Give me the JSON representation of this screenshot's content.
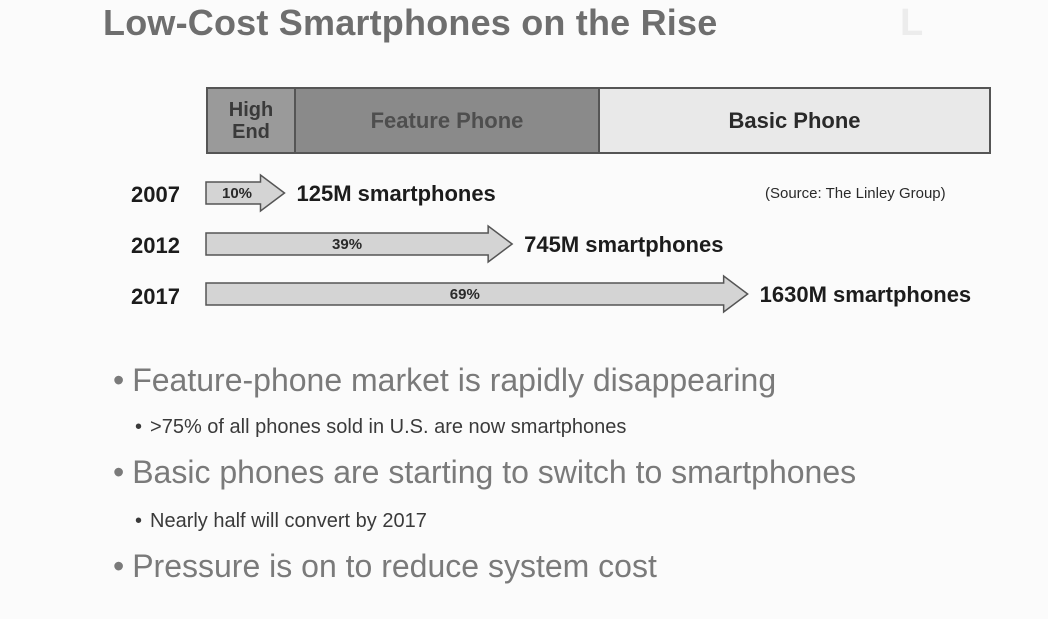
{
  "slide": {
    "title": "Low-Cost Smartphones on the Rise",
    "source": "(Source: The Linley Group)",
    "bullets": [
      {
        "level": 1,
        "text": "Feature-phone market is rapidly disappearing"
      },
      {
        "level": 2,
        "text": ">75% of all phones sold in U.S. are now smartphones"
      },
      {
        "level": 1,
        "text": "Basic phones are starting to switch to smartphones"
      },
      {
        "level": 2,
        "text": "Nearly half will convert by 2017"
      },
      {
        "level": 1,
        "text": "Pressure is on to reduce system cost"
      }
    ],
    "colors": {
      "high_end": "#9a9a9a",
      "feature": "#8a8a8a",
      "basic": "#e9e9e9",
      "arrow_fill": "#d4d4d4",
      "arrow_stroke": "#555555"
    }
  },
  "chart_data": {
    "type": "bar",
    "segments": [
      {
        "label": "High End"
      },
      {
        "label": "Feature Phone"
      },
      {
        "label": "Basic Phone"
      }
    ],
    "categories": [
      "2007",
      "2012",
      "2017"
    ],
    "series": [
      {
        "values": [
          10,
          39,
          69
        ],
        "value_labels": [
          "10%",
          "39%",
          "69%"
        ],
        "annotations": [
          "125M smartphones",
          "745M smartphones",
          "1630M smartphones"
        ]
      }
    ],
    "xlim": [
      0,
      100
    ]
  }
}
